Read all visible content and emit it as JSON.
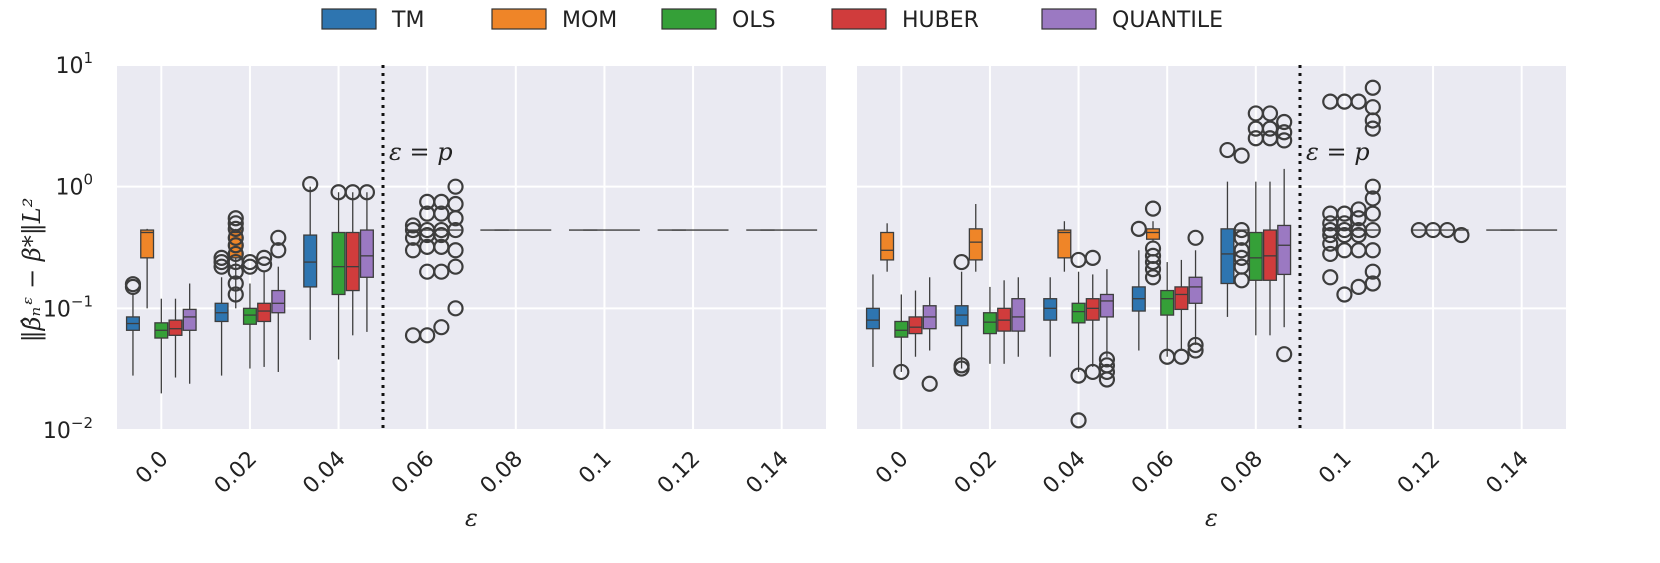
{
  "legend": [
    {
      "name": "TM",
      "color": "#2e75b0"
    },
    {
      "name": "MOM",
      "color": "#ef8528"
    },
    {
      "name": "OLS",
      "color": "#35a038"
    },
    {
      "name": "HUBER",
      "color": "#d03c3c"
    },
    {
      "name": "QUANTILE",
      "color": "#9b79c2"
    }
  ],
  "ylabel": "‖β̂ₙᵋ − β*‖L²",
  "chart_data": [
    {
      "type": "box",
      "title": "",
      "xlabel": "ε",
      "categories": [
        "0.0",
        "0.02",
        "0.04",
        "0.06",
        "0.08",
        "0.1",
        "0.12",
        "0.14"
      ],
      "yscale": "log",
      "ylim": [
        0.01,
        10
      ],
      "yticks": [
        {
          "base": "10",
          "exp": "−2"
        },
        {
          "base": "10",
          "exp": "−1"
        },
        {
          "base": "10",
          "exp": "0"
        },
        {
          "base": "10",
          "exp": "1"
        }
      ],
      "annotation": {
        "text": "ε = p",
        "between": [
          0.04,
          0.06
        ]
      },
      "series": [
        {
          "name": "TM",
          "boxes": [
            {
              "cat": 0,
              "whislo": 0.028,
              "q1": 0.066,
              "med": 0.075,
              "q3": 0.085,
              "whishi": 0.13,
              "fliers": [
                0.15,
                0.158
              ]
            },
            {
              "cat": 1,
              "whislo": 0.028,
              "q1": 0.078,
              "med": 0.092,
              "q3": 0.11,
              "whishi": 0.18,
              "fliers": [
                0.22,
                0.24,
                0.26
              ]
            },
            {
              "cat": 2,
              "whislo": 0.055,
              "q1": 0.15,
              "med": 0.24,
              "q3": 0.4,
              "whishi": 1.0,
              "fliers": [
                1.05
              ]
            }
          ]
        },
        {
          "name": "MOM",
          "boxes": [
            {
              "cat": 0,
              "whislo": 0.1,
              "q1": 0.26,
              "med": 0.42,
              "q3": 0.44,
              "whishi": 0.45,
              "fliers": []
            },
            {
              "cat": 1,
              "whislo": 0.1,
              "q1": 0.26,
              "med": 0.42,
              "q3": 0.44,
              "whishi": 0.45,
              "fliers": [
                0.13,
                0.16,
                0.2,
                0.24,
                0.28,
                0.33,
                0.38,
                0.45,
                0.5,
                0.55
              ]
            },
            {
              "cat": 3,
              "whislo": 0.44,
              "q1": 0.44,
              "med": 0.44,
              "q3": 0.44,
              "whishi": 0.44,
              "fliers": [
                0.06,
                0.3,
                0.38,
                0.44,
                0.48
              ]
            },
            {
              "cat": 4,
              "whislo": 0.44,
              "q1": 0.44,
              "med": 0.44,
              "q3": 0.44,
              "whishi": 0.44,
              "fliers": []
            },
            {
              "cat": 5,
              "whislo": 0.44,
              "q1": 0.44,
              "med": 0.44,
              "q3": 0.44,
              "whishi": 0.44,
              "fliers": []
            },
            {
              "cat": 6,
              "whislo": 0.44,
              "q1": 0.44,
              "med": 0.44,
              "q3": 0.44,
              "whishi": 0.44,
              "fliers": []
            },
            {
              "cat": 7,
              "whislo": 0.44,
              "q1": 0.44,
              "med": 0.44,
              "q3": 0.44,
              "whishi": 0.44,
              "fliers": []
            }
          ]
        },
        {
          "name": "OLS",
          "boxes": [
            {
              "cat": 0,
              "whislo": 0.02,
              "q1": 0.057,
              "med": 0.066,
              "q3": 0.076,
              "whishi": 0.12,
              "fliers": []
            },
            {
              "cat": 1,
              "whislo": 0.032,
              "q1": 0.074,
              "med": 0.088,
              "q3": 0.1,
              "whishi": 0.16,
              "fliers": [
                0.22,
                0.24
              ]
            },
            {
              "cat": 2,
              "whislo": 0.038,
              "q1": 0.13,
              "med": 0.22,
              "q3": 0.42,
              "whishi": 0.9,
              "fliers": [
                0.9
              ]
            },
            {
              "cat": 3,
              "whislo": 0.44,
              "q1": 0.44,
              "med": 0.44,
              "q3": 0.44,
              "whishi": 0.44,
              "fliers": [
                0.06,
                0.2,
                0.32,
                0.4,
                0.44,
                0.6,
                0.75
              ]
            }
          ]
        },
        {
          "name": "HUBER",
          "boxes": [
            {
              "cat": 0,
              "whislo": 0.027,
              "q1": 0.06,
              "med": 0.068,
              "q3": 0.08,
              "whishi": 0.12,
              "fliers": []
            },
            {
              "cat": 1,
              "whislo": 0.033,
              "q1": 0.078,
              "med": 0.095,
              "q3": 0.11,
              "whishi": 0.2,
              "fliers": [
                0.23,
                0.26
              ]
            },
            {
              "cat": 2,
              "whislo": 0.06,
              "q1": 0.14,
              "med": 0.22,
              "q3": 0.42,
              "whishi": 0.9,
              "fliers": [
                0.9
              ]
            },
            {
              "cat": 3,
              "whislo": 0.44,
              "q1": 0.44,
              "med": 0.44,
              "q3": 0.44,
              "whishi": 0.44,
              "fliers": [
                0.07,
                0.2,
                0.32,
                0.4,
                0.44,
                0.6,
                0.75
              ]
            }
          ]
        },
        {
          "name": "QUANTILE",
          "boxes": [
            {
              "cat": 0,
              "whislo": 0.024,
              "q1": 0.066,
              "med": 0.085,
              "q3": 0.098,
              "whishi": 0.16,
              "fliers": []
            },
            {
              "cat": 1,
              "whislo": 0.03,
              "q1": 0.092,
              "med": 0.11,
              "q3": 0.14,
              "whishi": 0.22,
              "fliers": [
                0.3,
                0.38
              ]
            },
            {
              "cat": 2,
              "whislo": 0.064,
              "q1": 0.18,
              "med": 0.27,
              "q3": 0.44,
              "whishi": 0.9,
              "fliers": [
                0.9
              ]
            },
            {
              "cat": 3,
              "whislo": 0.44,
              "q1": 0.44,
              "med": 0.44,
              "q3": 0.44,
              "whishi": 0.44,
              "fliers": [
                0.1,
                0.22,
                0.3,
                0.44,
                0.55,
                0.72,
                1.0
              ]
            }
          ]
        }
      ]
    },
    {
      "type": "box",
      "title": "",
      "xlabel": "ε",
      "categories": [
        "0.0",
        "0.02",
        "0.04",
        "0.06",
        "0.08",
        "0.1",
        "0.12",
        "0.14"
      ],
      "yscale": "log",
      "ylim": [
        0.01,
        10
      ],
      "annotation": {
        "text": "ε = p",
        "between": [
          0.08,
          0.1
        ]
      },
      "series": [
        {
          "name": "TM",
          "boxes": [
            {
              "cat": 0,
              "whislo": 0.033,
              "q1": 0.068,
              "med": 0.08,
              "q3": 0.1,
              "whishi": 0.19,
              "fliers": []
            },
            {
              "cat": 1,
              "whislo": 0.032,
              "q1": 0.072,
              "med": 0.088,
              "q3": 0.105,
              "whishi": 0.2,
              "fliers": [
                0.032,
                0.034,
                0.24
              ]
            },
            {
              "cat": 2,
              "whislo": 0.04,
              "q1": 0.08,
              "med": 0.1,
              "q3": 0.12,
              "whishi": 0.18,
              "fliers": []
            },
            {
              "cat": 3,
              "whislo": 0.045,
              "q1": 0.095,
              "med": 0.12,
              "q3": 0.15,
              "whishi": 0.3,
              "fliers": [
                0.45
              ]
            },
            {
              "cat": 4,
              "whislo": 0.085,
              "q1": 0.16,
              "med": 0.28,
              "q3": 0.45,
              "whishi": 1.1,
              "fliers": [
                2.0
              ]
            }
          ]
        },
        {
          "name": "MOM",
          "boxes": [
            {
              "cat": 0,
              "whislo": 0.2,
              "q1": 0.25,
              "med": 0.3,
              "q3": 0.42,
              "whishi": 0.5,
              "fliers": []
            },
            {
              "cat": 1,
              "whislo": 0.2,
              "q1": 0.25,
              "med": 0.35,
              "q3": 0.45,
              "whishi": 0.72,
              "fliers": []
            },
            {
              "cat": 2,
              "whislo": 0.2,
              "q1": 0.26,
              "med": 0.42,
              "q3": 0.44,
              "whishi": 0.52,
              "fliers": []
            },
            {
              "cat": 3,
              "whislo": 0.36,
              "q1": 0.37,
              "med": 0.42,
              "q3": 0.45,
              "whishi": 0.52,
              "fliers": [
                0.18,
                0.21,
                0.24,
                0.27,
                0.31,
                0.66
              ]
            },
            {
              "cat": 4,
              "whislo": 0.44,
              "q1": 0.44,
              "med": 0.44,
              "q3": 0.44,
              "whishi": 0.44,
              "fliers": [
                0.17,
                0.22,
                0.26,
                0.3,
                0.38,
                0.44,
                1.8
              ]
            },
            {
              "cat": 5,
              "whislo": 0.44,
              "q1": 0.44,
              "med": 0.44,
              "q3": 0.44,
              "whishi": 0.44,
              "fliers": [
                0.18,
                0.28,
                0.34,
                0.4,
                0.44,
                0.5,
                0.6,
                5.0
              ]
            },
            {
              "cat": 6,
              "whislo": 0.44,
              "q1": 0.44,
              "med": 0.44,
              "q3": 0.44,
              "whishi": 0.44,
              "fliers": [
                0.44
              ]
            },
            {
              "cat": 7,
              "whislo": 0.44,
              "q1": 0.44,
              "med": 0.44,
              "q3": 0.44,
              "whishi": 0.44,
              "fliers": []
            }
          ]
        },
        {
          "name": "OLS",
          "boxes": [
            {
              "cat": 0,
              "whislo": 0.03,
              "q1": 0.058,
              "med": 0.066,
              "q3": 0.078,
              "whishi": 0.13,
              "fliers": [
                0.03
              ]
            },
            {
              "cat": 1,
              "whislo": 0.035,
              "q1": 0.062,
              "med": 0.077,
              "q3": 0.092,
              "whishi": 0.15,
              "fliers": []
            },
            {
              "cat": 2,
              "whislo": 0.03,
              "q1": 0.076,
              "med": 0.094,
              "q3": 0.11,
              "whishi": 0.2,
              "fliers": [
                0.012,
                0.028,
                0.25
              ]
            },
            {
              "cat": 3,
              "whislo": 0.04,
              "q1": 0.088,
              "med": 0.12,
              "q3": 0.14,
              "whishi": 0.24,
              "fliers": [
                0.04
              ]
            },
            {
              "cat": 4,
              "whislo": 0.06,
              "q1": 0.17,
              "med": 0.26,
              "q3": 0.42,
              "whishi": 1.1,
              "fliers": [
                2.5,
                3.0,
                4.0
              ]
            },
            {
              "cat": 5,
              "whislo": 0.44,
              "q1": 0.44,
              "med": 0.44,
              "q3": 0.44,
              "whishi": 0.44,
              "fliers": [
                0.13,
                0.3,
                0.4,
                0.44,
                0.5,
                0.6,
                5.0
              ]
            },
            {
              "cat": 6,
              "whislo": 0.44,
              "q1": 0.44,
              "med": 0.44,
              "q3": 0.44,
              "whishi": 0.44,
              "fliers": [
                0.44
              ]
            }
          ]
        },
        {
          "name": "HUBER",
          "boxes": [
            {
              "cat": 0,
              "whislo": 0.04,
              "q1": 0.062,
              "med": 0.07,
              "q3": 0.085,
              "whishi": 0.14,
              "fliers": []
            },
            {
              "cat": 1,
              "whislo": 0.035,
              "q1": 0.065,
              "med": 0.08,
              "q3": 0.1,
              "whishi": 0.17,
              "fliers": []
            },
            {
              "cat": 2,
              "whislo": 0.033,
              "q1": 0.08,
              "med": 0.1,
              "q3": 0.12,
              "whishi": 0.19,
              "fliers": [
                0.03,
                0.26
              ]
            },
            {
              "cat": 3,
              "whislo": 0.045,
              "q1": 0.098,
              "med": 0.13,
              "q3": 0.15,
              "whishi": 0.25,
              "fliers": [
                0.04
              ]
            },
            {
              "cat": 4,
              "whislo": 0.06,
              "q1": 0.17,
              "med": 0.27,
              "q3": 0.44,
              "whishi": 1.1,
              "fliers": [
                2.5,
                3.0,
                4.0
              ]
            },
            {
              "cat": 5,
              "whislo": 0.44,
              "q1": 0.44,
              "med": 0.44,
              "q3": 0.44,
              "whishi": 0.44,
              "fliers": [
                0.15,
                0.3,
                0.4,
                0.44,
                0.55,
                0.65,
                5.0
              ]
            },
            {
              "cat": 6,
              "whislo": 0.44,
              "q1": 0.44,
              "med": 0.44,
              "q3": 0.44,
              "whishi": 0.44,
              "fliers": [
                0.44
              ]
            }
          ]
        },
        {
          "name": "QUANTILE",
          "boxes": [
            {
              "cat": 0,
              "whislo": 0.045,
              "q1": 0.068,
              "med": 0.085,
              "q3": 0.105,
              "whishi": 0.18,
              "fliers": [
                0.024
              ]
            },
            {
              "cat": 1,
              "whislo": 0.04,
              "q1": 0.065,
              "med": 0.085,
              "q3": 0.12,
              "whishi": 0.18,
              "fliers": []
            },
            {
              "cat": 2,
              "whislo": 0.04,
              "q1": 0.085,
              "med": 0.115,
              "q3": 0.13,
              "whishi": 0.21,
              "fliers": [
                0.026,
                0.03,
                0.034,
                0.038
              ]
            },
            {
              "cat": 3,
              "whislo": 0.05,
              "q1": 0.11,
              "med": 0.15,
              "q3": 0.18,
              "whishi": 0.3,
              "fliers": [
                0.045,
                0.05,
                0.38
              ]
            },
            {
              "cat": 4,
              "whislo": 0.07,
              "q1": 0.19,
              "med": 0.33,
              "q3": 0.48,
              "whishi": 1.4,
              "fliers": [
                0.042,
                2.4,
                2.8,
                3.4
              ]
            },
            {
              "cat": 5,
              "whislo": 0.44,
              "q1": 0.44,
              "med": 0.44,
              "q3": 0.44,
              "whishi": 0.44,
              "fliers": [
                0.16,
                0.2,
                0.3,
                0.44,
                0.6,
                0.8,
                1.0,
                3.0,
                3.5,
                4.5,
                6.5
              ]
            },
            {
              "cat": 6,
              "whislo": 0.44,
              "q1": 0.44,
              "med": 0.44,
              "q3": 0.44,
              "whishi": 0.44,
              "fliers": [
                0.4
              ]
            }
          ]
        }
      ]
    }
  ]
}
